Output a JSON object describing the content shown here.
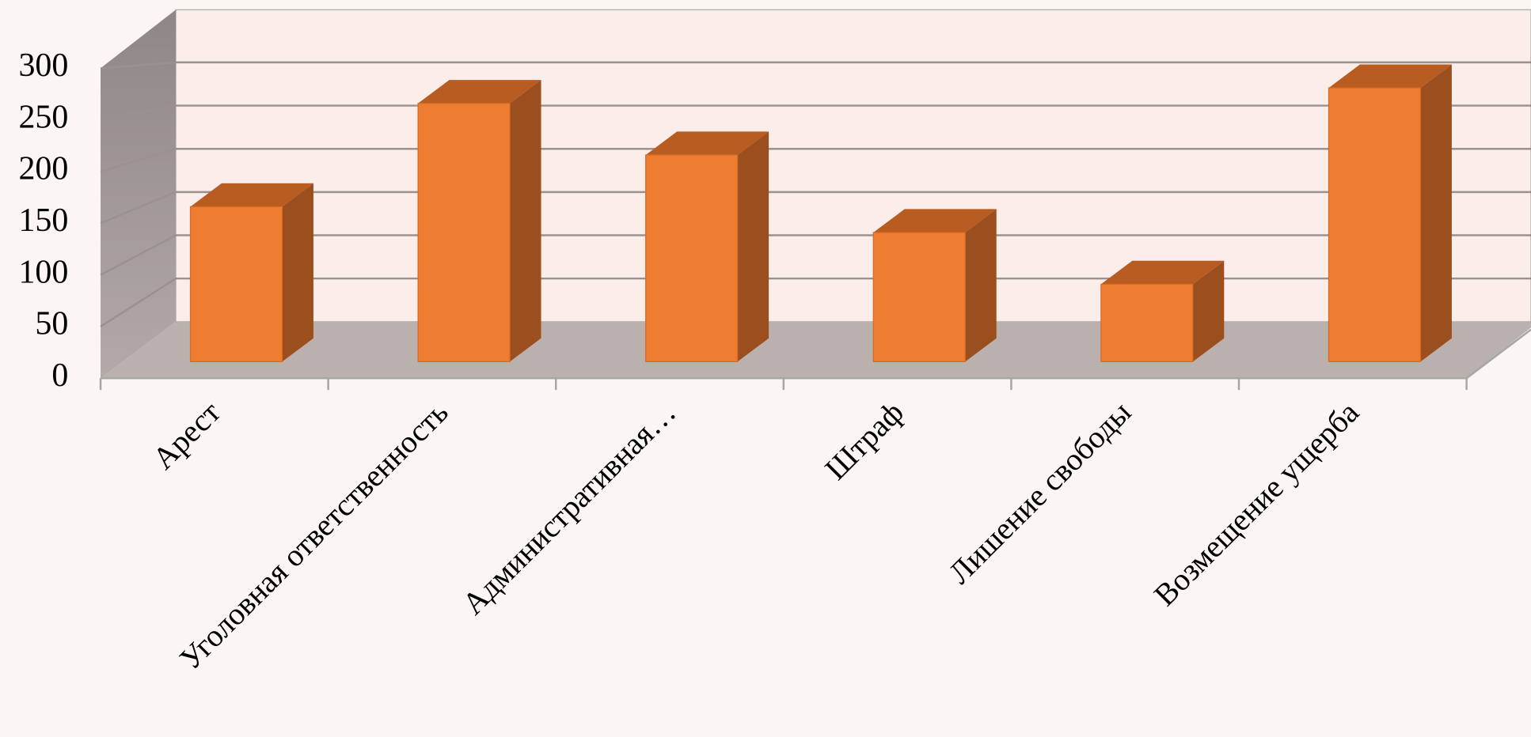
{
  "chart_data": {
    "type": "bar",
    "categories": [
      "Арест",
      "Уголовная ответственность",
      "Административная…",
      "Штраф",
      "Лишение свободы",
      "Возмещение ущерба"
    ],
    "values": [
      150,
      250,
      200,
      125,
      75,
      265
    ],
    "color": "#ed7d31",
    "ylim": [
      0,
      300
    ],
    "yticks": [
      0,
      50,
      100,
      150,
      200,
      250,
      300
    ],
    "grid": true
  }
}
